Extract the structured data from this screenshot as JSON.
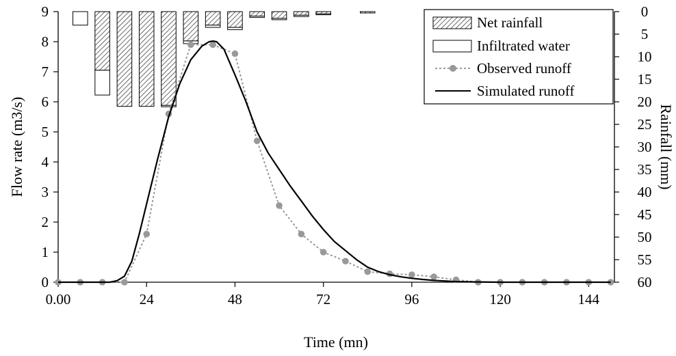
{
  "chart_data": {
    "type": "line",
    "title": "",
    "xlabel": "Time (mn)",
    "ylabel": "Flow rate (m3/s)",
    "y2label": "Rainfall (mm)",
    "xlim": [
      0,
      151
    ],
    "ylim": [
      0,
      9
    ],
    "y2lim": [
      0,
      60
    ],
    "y2_inverted": true,
    "grid": false,
    "legend_position": "top-right",
    "x_ticks": [
      0,
      24,
      48,
      72,
      96,
      120,
      144
    ],
    "x_tick_labels": [
      "0.00",
      "24",
      "48",
      "72",
      "96",
      "120",
      "144"
    ],
    "y_ticks": [
      0,
      1,
      2,
      3,
      4,
      5,
      6,
      7,
      8,
      9
    ],
    "y_tick_labels": [
      "0",
      "1",
      "2",
      "3",
      "4",
      "5",
      "6",
      "7",
      "8",
      "9"
    ],
    "y2_ticks": [
      0,
      5,
      10,
      15,
      20,
      25,
      30,
      35,
      40,
      45,
      50,
      55,
      60
    ],
    "y2_tick_labels": [
      "0",
      "5",
      "10",
      "15",
      "20",
      "25",
      "30",
      "35",
      "40",
      "45",
      "50",
      "55",
      "60"
    ],
    "rain_bar_width": 4,
    "rainfall": {
      "times": [
        6,
        12,
        18,
        24,
        30,
        36,
        42,
        48,
        54,
        60,
        66,
        72,
        84
      ],
      "net_rainfall": [
        0,
        13,
        21,
        21,
        20.8,
        6.5,
        3,
        3.5,
        1,
        1.5,
        0.8,
        0.5,
        0.3
      ],
      "infiltrated_water": [
        3,
        5.5,
        0,
        0,
        0.3,
        0.6,
        0.5,
        0.5,
        0.3,
        0.3,
        0.3,
        0.2,
        0
      ]
    },
    "series": [
      {
        "name": "Observed runoff",
        "style": "dotted-markers",
        "color": "#999999",
        "x": [
          0,
          6,
          12,
          18,
          24,
          30,
          36,
          42,
          48,
          54,
          60,
          66,
          72,
          78,
          84,
          90,
          96,
          102,
          108,
          114,
          120,
          126,
          132,
          138,
          144,
          150
        ],
        "y": [
          0,
          0,
          0,
          0,
          1.6,
          5.6,
          7.9,
          7.9,
          7.6,
          4.7,
          2.55,
          1.6,
          1.0,
          0.7,
          0.35,
          0.28,
          0.25,
          0.18,
          0.08,
          0,
          0,
          0,
          0,
          0,
          0,
          0
        ]
      },
      {
        "name": "Simulated runoff",
        "style": "solid",
        "color": "#000000",
        "x": [
          0,
          9,
          14,
          16,
          18,
          20,
          22,
          24,
          27,
          30,
          33,
          36,
          39,
          41,
          42,
          43,
          45,
          48,
          51,
          54,
          57,
          60,
          63,
          66,
          69,
          72,
          75,
          78,
          81,
          84,
          87,
          90,
          93,
          96,
          99,
          102,
          105,
          108,
          114,
          120,
          132,
          150
        ],
        "y": [
          0,
          0,
          0,
          0.05,
          0.2,
          0.7,
          1.6,
          2.6,
          4.1,
          5.5,
          6.6,
          7.4,
          7.85,
          8.0,
          8.02,
          8.0,
          7.75,
          6.9,
          6.0,
          5.0,
          4.3,
          3.75,
          3.2,
          2.7,
          2.2,
          1.75,
          1.35,
          1.05,
          0.75,
          0.5,
          0.35,
          0.25,
          0.18,
          0.13,
          0.09,
          0.06,
          0.04,
          0.02,
          0.01,
          0,
          0,
          0
        ]
      }
    ],
    "legend": [
      {
        "label": "Net rainfall",
        "swatch": "hatched-box"
      },
      {
        "label": "Infiltrated water",
        "swatch": "white-box"
      },
      {
        "label": "Observed runoff",
        "swatch": "dotted-marker-line"
      },
      {
        "label": "Simulated runoff",
        "swatch": "solid-line"
      }
    ]
  }
}
